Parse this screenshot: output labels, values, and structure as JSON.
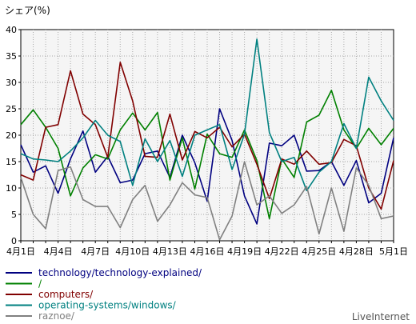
{
  "chart_data": {
    "type": "line",
    "ylabel": "シェア(%)",
    "ylim": [
      0,
      40
    ],
    "yticks": [
      "0",
      "5",
      "10",
      "15",
      "20",
      "25",
      "30",
      "35",
      "40"
    ],
    "x_tick_labels": [
      "4月1日",
      "4月4日",
      "4月7日",
      "4月10日",
      "4月13日",
      "4月16日",
      "4月19日",
      "4月22日",
      "4月25日",
      "4月28日",
      "5月1日"
    ],
    "x_tick_every": 3,
    "grid": true,
    "legend_position": "bottom-left",
    "series": [
      {
        "name": "technology/technology-explained/",
        "color": "#000080",
        "values": [
          18.2,
          13.0,
          14.2,
          9.0,
          15.5,
          20.8,
          13.0,
          16.0,
          11.0,
          11.5,
          16.5,
          17.0,
          12.0,
          20.0,
          14.8,
          7.5,
          25.0,
          19.0,
          8.5,
          3.2,
          18.5,
          18.0,
          20.0,
          13.2,
          13.3,
          15.0,
          10.5,
          15.2,
          7.2,
          9.0,
          19.5
        ]
      },
      {
        "name": "/",
        "color": "#008000",
        "values": [
          22.0,
          24.8,
          21.5,
          17.5,
          8.5,
          13.8,
          16.3,
          15.5,
          21.0,
          24.2,
          21.0,
          24.3,
          11.5,
          19.5,
          9.8,
          20.2,
          16.5,
          15.8,
          21.0,
          15.2,
          4.2,
          15.5,
          12.0,
          22.5,
          23.8,
          28.5,
          21.0,
          17.5,
          21.3,
          18.2,
          21.3
        ]
      },
      {
        "name": "computers/",
        "color": "#800000",
        "values": [
          12.5,
          11.5,
          21.5,
          22.0,
          32.2,
          24.0,
          22.0,
          15.8,
          33.8,
          26.5,
          16.0,
          15.8,
          24.0,
          15.3,
          20.7,
          19.5,
          21.5,
          17.8,
          20.2,
          14.5,
          8.0,
          15.5,
          14.5,
          17.0,
          14.5,
          14.8,
          19.2,
          18.0,
          10.0,
          6.0,
          15.2
        ]
      },
      {
        "name": "operating-systems/windows/",
        "color": "#008080",
        "values": [
          16.5,
          15.5,
          15.3,
          15.0,
          17.0,
          19.5,
          22.8,
          20.0,
          18.8,
          10.5,
          19.3,
          15.0,
          19.0,
          12.2,
          20.0,
          21.0,
          22.0,
          13.5,
          20.2,
          38.2,
          20.5,
          15.0,
          15.8,
          9.5,
          13.0,
          15.0,
          22.2,
          17.5,
          31.0,
          26.5,
          22.8
        ]
      },
      {
        "name": "raznoe/",
        "color": "#808080",
        "values": [
          12.0,
          5.0,
          2.3,
          13.3,
          14.0,
          7.8,
          6.5,
          6.5,
          2.5,
          7.8,
          10.5,
          3.7,
          6.8,
          11.0,
          8.7,
          8.2,
          0.2,
          4.7,
          15.0,
          6.8,
          8.5,
          5.2,
          6.8,
          10.3,
          1.3,
          10.0,
          1.8,
          13.8,
          10.5,
          4.2,
          4.7
        ]
      }
    ]
  },
  "watermark": "LiveInternet"
}
